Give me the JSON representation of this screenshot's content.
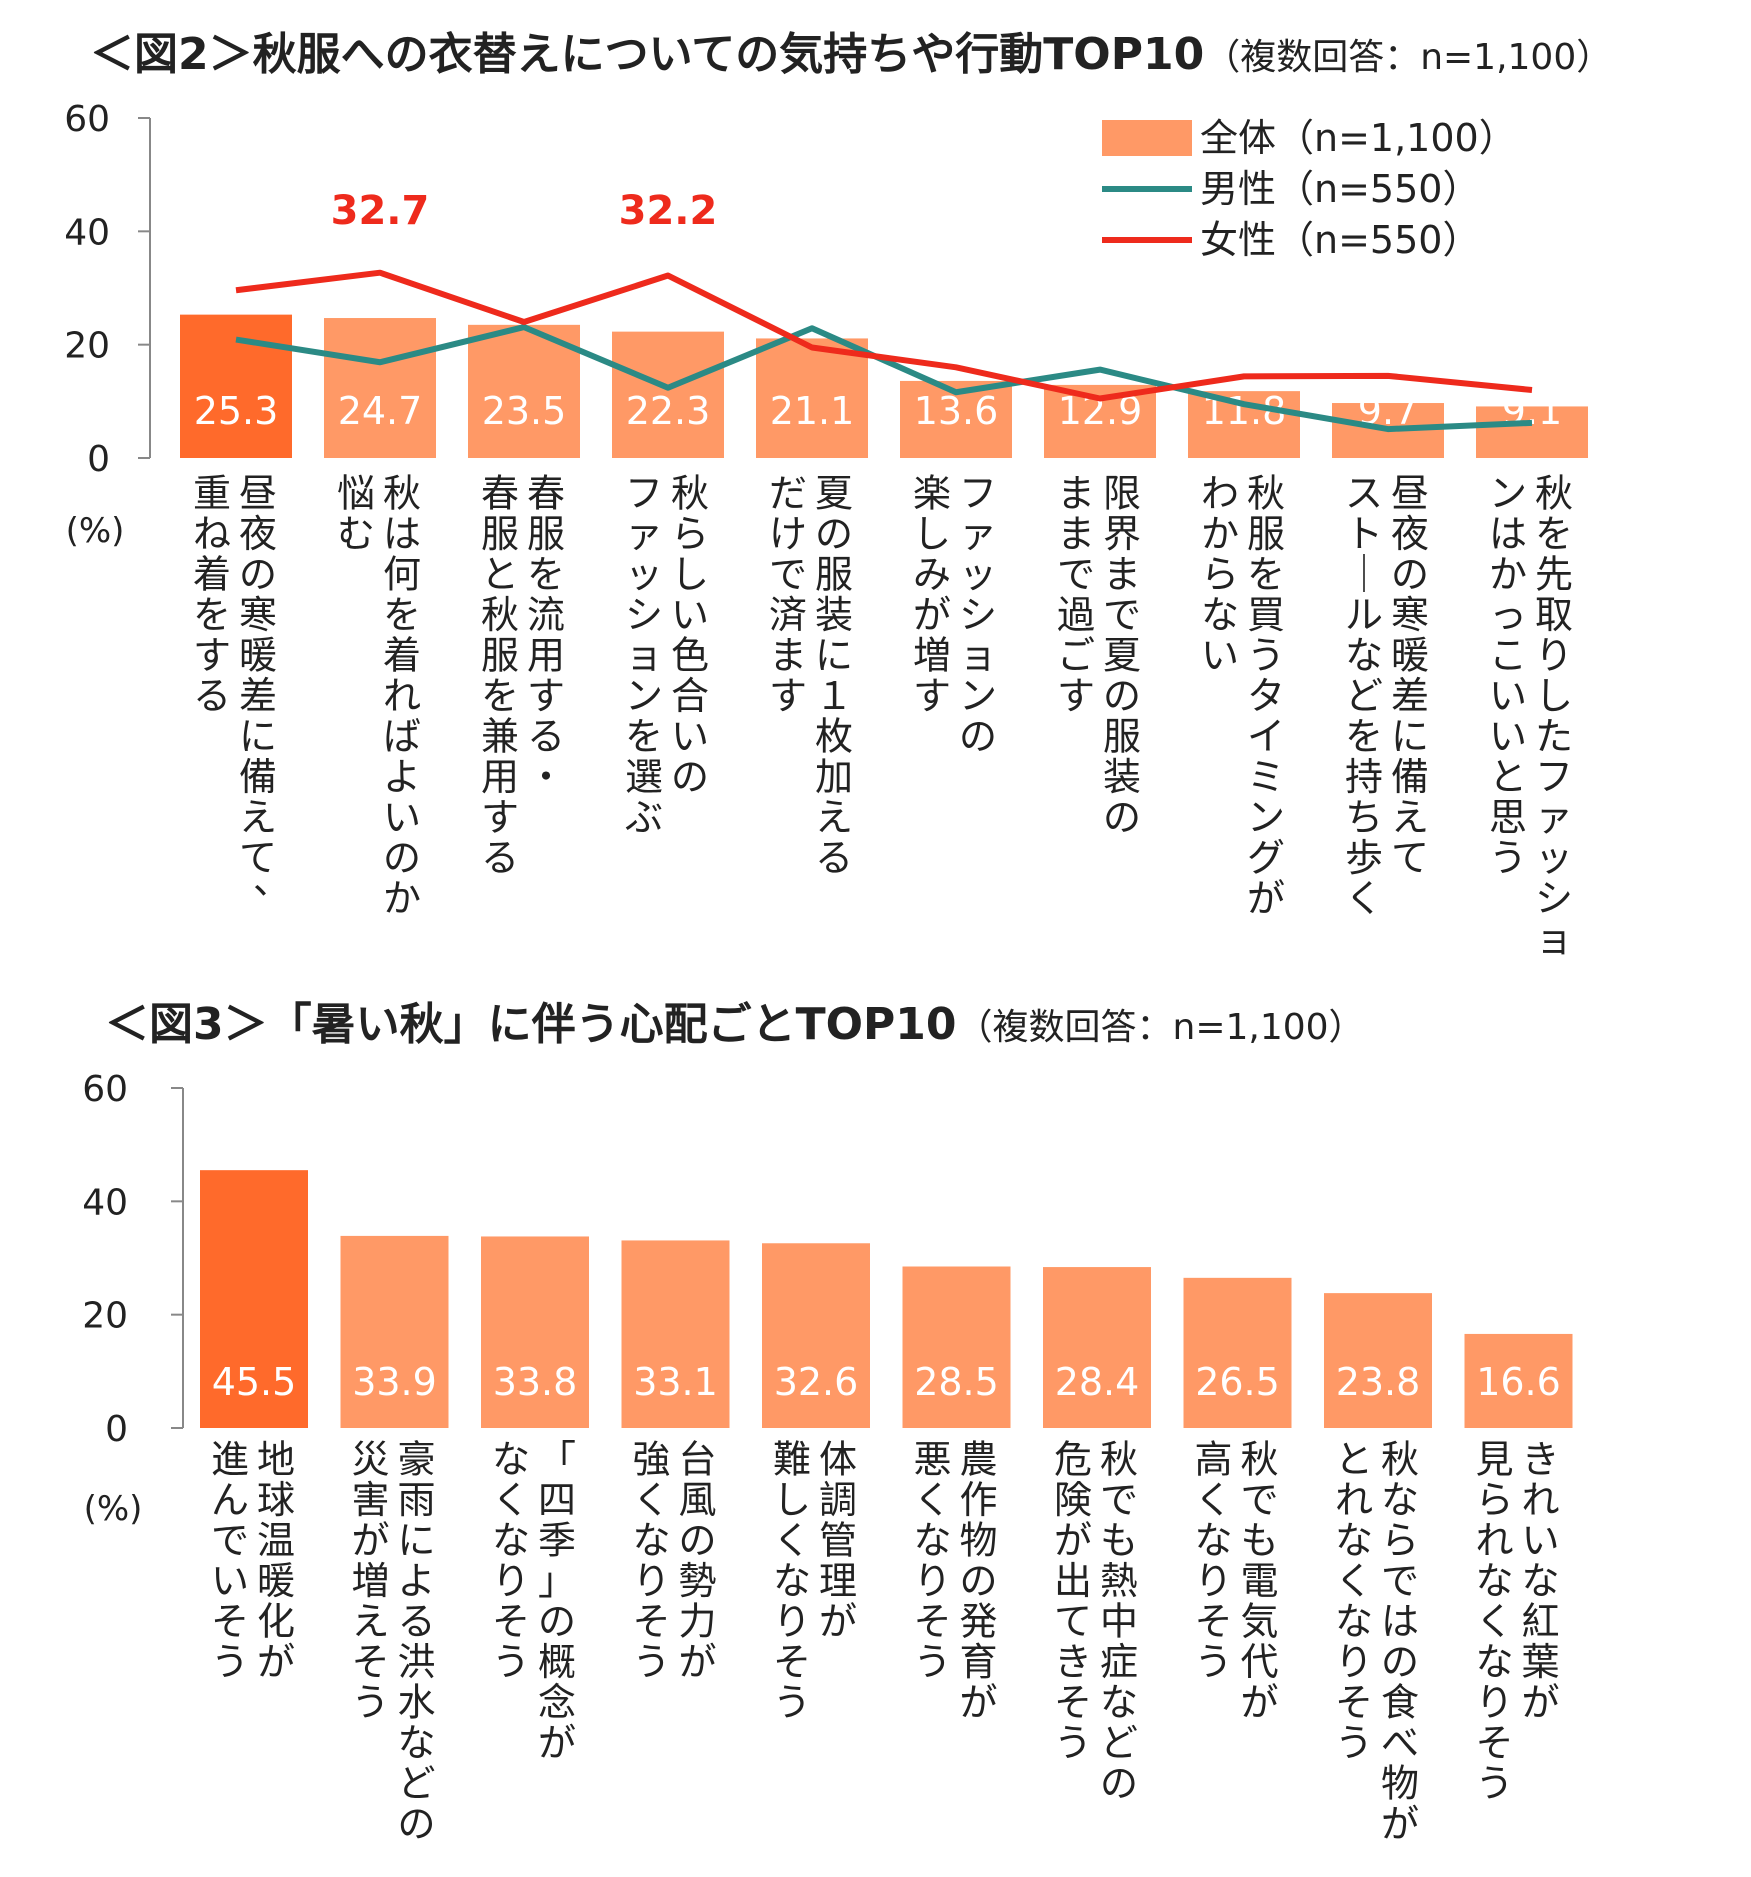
{
  "figure2": {
    "title": "＜図2＞秋服への衣替えについての気持ちや行動TOP10",
    "subtitle": "（複数回答：n=1,100）"
  },
  "figure3": {
    "title": "＜図3＞「暑い秋」に伴う心配ごとTOP10",
    "subtitle": "（複数回答：n=1,100）"
  },
  "colors": {
    "highlight_bar": "#ff6a2b",
    "bar": "#ff9966",
    "male_line": "#2b8a85",
    "female_line": "#ee2a1c",
    "axis": "#888888"
  },
  "chart_data": [
    {
      "type": "bar",
      "title": "＜図2＞秋服への衣替えについての気持ちや行動TOP10",
      "ylabel": "(%)",
      "ylim": [
        0,
        60
      ],
      "yticks": [
        0,
        20,
        40,
        60
      ],
      "categories": [
        [
          "昼夜の寒暖差に備えて、",
          "重ね着をする"
        ],
        [
          "秋は何を着ればよいのか",
          "悩む"
        ],
        [
          "春服を流用する・",
          "春服と秋服を兼用する"
        ],
        [
          "秋らしい色合いの",
          "ファッションを選ぶ"
        ],
        [
          "夏の服装に１枚加える",
          "だけで済ます"
        ],
        [
          "ファッションの",
          "楽しみが増す"
        ],
        [
          "限界まで夏の服装の",
          "ままで過ごす"
        ],
        [
          "秋服を買うタイミングが",
          "わからない"
        ],
        [
          "昼夜の寒暖差に備えて",
          "ストールなどを持ち歩く"
        ],
        [
          "秋を先取りしたファッショ",
          "ンはかっこいいと思う"
        ]
      ],
      "series": [
        {
          "name": "全体（n=1,100）",
          "kind": "bar",
          "values": [
            25.3,
            24.7,
            23.5,
            22.3,
            21.1,
            13.6,
            12.9,
            11.8,
            9.7,
            9.1
          ]
        },
        {
          "name": "男性（n=550）",
          "kind": "line",
          "values": [
            20.9,
            16.9,
            23.1,
            12.4,
            22.9,
            11.6,
            15.6,
            9.5,
            5.1,
            6.2
          ]
        },
        {
          "name": "女性（n=550）",
          "kind": "line",
          "values": [
            29.6,
            32.7,
            24.0,
            32.2,
            19.5,
            16.0,
            10.5,
            14.4,
            14.5,
            12.0
          ]
        }
      ],
      "highlight_index": 0,
      "annotations": [
        "32.7",
        "32.2"
      ],
      "annotation_indices": [
        1,
        3
      ],
      "legend_position": "top-right"
    },
    {
      "type": "bar",
      "title": "＜図3＞「暑い秋」に伴う心配ごとTOP10",
      "ylabel": "(%)",
      "ylim": [
        0,
        60
      ],
      "yticks": [
        0,
        20,
        40,
        60
      ],
      "categories": [
        [
          "地球温暖化が",
          "進んでいそう"
        ],
        [
          "豪雨による洪水などの",
          "災害が増えそう"
        ],
        [
          "「四季」の概念が",
          "なくなりそう"
        ],
        [
          "台風の勢力が",
          "強くなりそう"
        ],
        [
          "体調管理が",
          "難しくなりそう"
        ],
        [
          "農作物の発育が",
          "悪くなりそう"
        ],
        [
          "秋でも熱中症などの",
          "危険が出てきそう"
        ],
        [
          "秋でも電気代が",
          "高くなりそう"
        ],
        [
          "秋ならではの食べ物が",
          "とれなくなりそう"
        ],
        [
          "きれいな紅葉が",
          "見られなくなりそう"
        ]
      ],
      "values": [
        45.5,
        33.9,
        33.8,
        33.1,
        32.6,
        28.5,
        28.4,
        26.5,
        23.8,
        16.6
      ],
      "highlight_index": 0
    }
  ]
}
